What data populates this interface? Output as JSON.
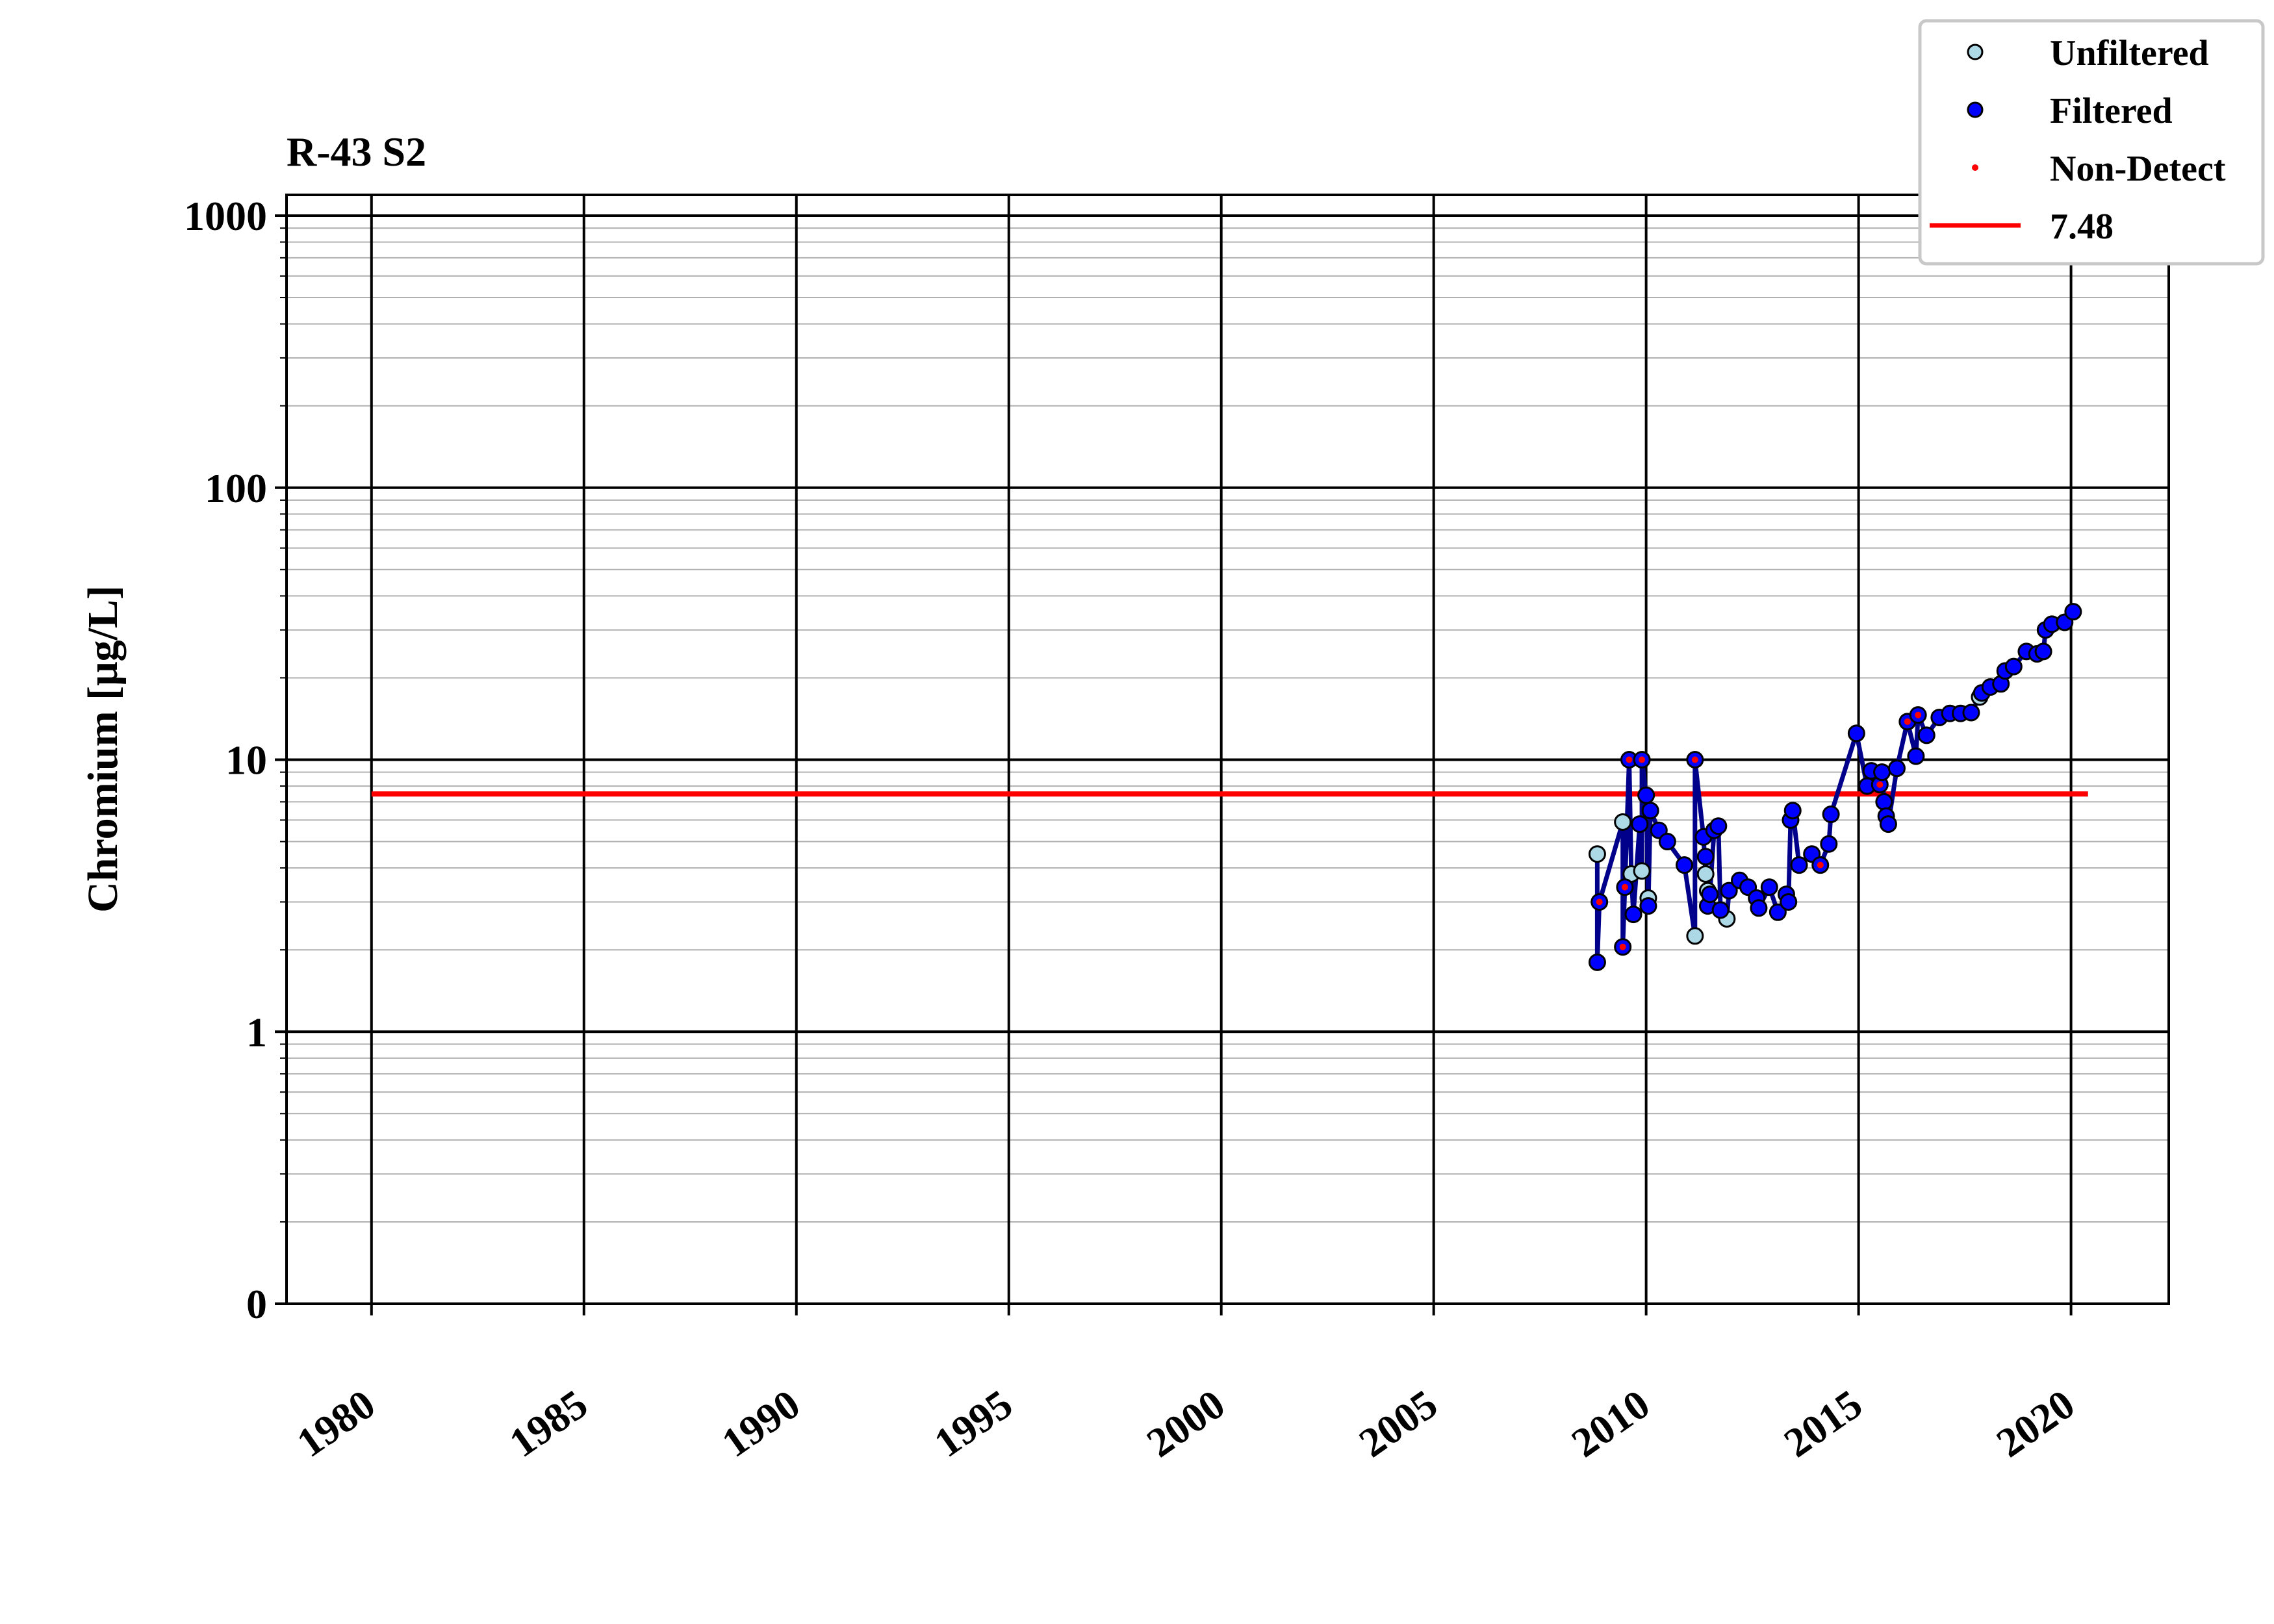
{
  "chart_data": {
    "type": "line",
    "title": "R-43 S2",
    "xlabel": "",
    "ylabel": "Chromium [μg/L]",
    "xlim": [
      1978,
      2022.3
    ],
    "ylim": [
      0.1,
      1000
    ],
    "yscale": "log",
    "y_tick_labels": [
      "0",
      "1",
      "10",
      "100",
      "1000"
    ],
    "y_tick_values": [
      0.1,
      1,
      10,
      100,
      1000
    ],
    "x_tick_labels": [
      "1980",
      "1985",
      "1990",
      "1995",
      "2000",
      "2005",
      "2010",
      "2015",
      "2020"
    ],
    "x_tick_values": [
      1980,
      1985,
      1990,
      1995,
      2000,
      2005,
      2010,
      2015,
      2020
    ],
    "grid": true,
    "legend_position": "top-right",
    "legend": [
      {
        "label": "Unfiltered",
        "kind": "marker",
        "color": "#add8e6"
      },
      {
        "label": "Filtered",
        "kind": "marker",
        "color": "#0000ff"
      },
      {
        "label": "Non-Detect",
        "kind": "dot",
        "color": "#ff0000"
      },
      {
        "label": "7.48",
        "kind": "line",
        "color": "#ff0000"
      }
    ],
    "reference_line": {
      "y": 7.48,
      "x_start": 1980,
      "x_end": 2020.4,
      "color": "#ff0000"
    },
    "series": [
      {
        "name": "Unfiltered",
        "color": "#add8e6",
        "line_color": "#00008b",
        "x": [
          2008.85,
          2009.45,
          2009.65,
          2009.9,
          2010.05,
          2011.15,
          2011.4,
          2011.45,
          2011.9,
          2017.85
        ],
        "y": [
          4.5,
          5.9,
          3.8,
          3.9,
          3.1,
          2.25,
          3.8,
          3.3,
          2.6,
          17
        ],
        "nondetect": [
          false,
          false,
          false,
          false,
          false,
          false,
          false,
          false,
          false,
          false
        ]
      },
      {
        "name": "Filtered",
        "color": "#0000ff",
        "line_color": "#00008b",
        "x": [
          2008.85,
          2008.9,
          2009.45,
          2009.5,
          2009.6,
          2009.7,
          2009.85,
          2009.9,
          2010.0,
          2010.05,
          2010.1,
          2010.3,
          2010.5,
          2010.9,
          2011.15,
          2011.35,
          2011.4,
          2011.45,
          2011.5,
          2011.6,
          2011.7,
          2011.75,
          2011.95,
          2012.2,
          2012.4,
          2012.6,
          2012.65,
          2012.9,
          2013.1,
          2013.3,
          2013.35,
          2013.4,
          2013.45,
          2013.6,
          2013.9,
          2014.1,
          2014.3,
          2014.35,
          2014.95,
          2015.2,
          2015.3,
          2015.5,
          2015.55,
          2015.6,
          2015.65,
          2015.7,
          2015.9,
          2016.15,
          2016.35,
          2016.4,
          2016.6,
          2016.9,
          2017.15,
          2017.4,
          2017.65,
          2017.9,
          2018.1,
          2018.35,
          2018.45,
          2018.65,
          2018.95,
          2019.2,
          2019.35,
          2019.4,
          2019.55,
          2019.85,
          2020.05
        ],
        "y": [
          1.8,
          3.0,
          2.05,
          3.4,
          10,
          2.7,
          5.8,
          10,
          7.4,
          2.9,
          6.5,
          5.5,
          5.0,
          4.1,
          10,
          5.2,
          4.4,
          2.9,
          3.2,
          5.5,
          5.7,
          2.8,
          3.3,
          3.6,
          3.4,
          3.1,
          2.85,
          3.4,
          2.75,
          3.2,
          3.0,
          6.0,
          6.5,
          4.1,
          4.5,
          4.1,
          4.9,
          6.3,
          12.5,
          8.0,
          9.1,
          8.1,
          9.0,
          7.0,
          6.2,
          5.8,
          9.3,
          13.8,
          10.3,
          14.6,
          12.3,
          14.3,
          14.8,
          14.8,
          14.9,
          17.6,
          18.5,
          19.0,
          21.2,
          22.0,
          25.0,
          24.5,
          25.0,
          30.0,
          31.5,
          32.0,
          35.0
        ],
        "nondetect": [
          false,
          true,
          true,
          true,
          true,
          false,
          false,
          true,
          false,
          false,
          false,
          false,
          false,
          false,
          true,
          false,
          false,
          false,
          false,
          false,
          false,
          false,
          false,
          false,
          false,
          false,
          false,
          false,
          false,
          false,
          false,
          false,
          false,
          false,
          false,
          true,
          false,
          false,
          false,
          false,
          false,
          true,
          false,
          false,
          false,
          false,
          false,
          true,
          false,
          true,
          false,
          false,
          false,
          false,
          false,
          false,
          false,
          false,
          false,
          false,
          false,
          false,
          false,
          false,
          false,
          false,
          false
        ]
      }
    ]
  }
}
